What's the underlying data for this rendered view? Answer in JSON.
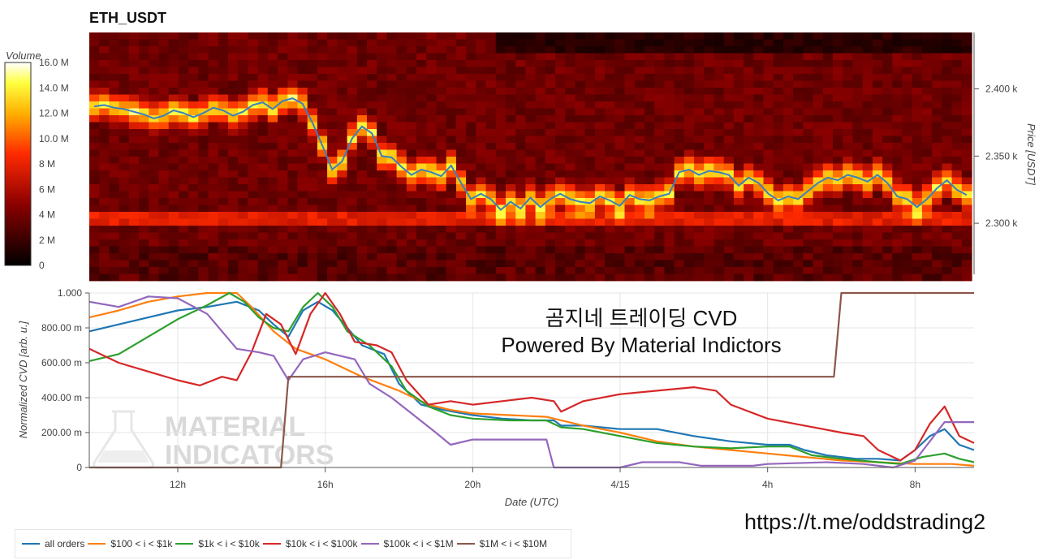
{
  "title": "ETH_USDT",
  "colors": {
    "all_orders": "#1f77b4",
    "r100_1k": "#ff7f0e",
    "r1k_10k": "#2ca02c",
    "r10k_100k": "#d62728",
    "r100k_1m": "#9467bd",
    "r1m_10m": "#8c564b"
  },
  "overlay": {
    "line1": "곰지네 트레이딩 CVD",
    "line2": "Powered By Material Indictors"
  },
  "url": "https://t.me/oddstrading2",
  "watermark": {
    "line1": "MATERIAL",
    "line2": "INDICATORS",
    "icon": "flask-icon"
  },
  "legend": [
    {
      "key": "all_orders",
      "label": "all orders"
    },
    {
      "key": "r100_1k",
      "label": "$100 < i < $1k"
    },
    {
      "key": "r1k_10k",
      "label": "$1k < i < $10k"
    },
    {
      "key": "r10k_100k",
      "label": "$10k < i < $100k"
    },
    {
      "key": "r100k_1m",
      "label": "$100k < i < $1M"
    },
    {
      "key": "r1m_10m",
      "label": "$1M < i < $10M"
    }
  ],
  "chart_data": [
    {
      "type": "heatmap",
      "title": "ETH_USDT",
      "ylabel": "Price [USDT]",
      "colorbar_label": "Volume",
      "colorbar_ticks": [
        "0",
        "2 M",
        "4 M",
        "6 M",
        "8 M",
        "10.0 M",
        "12.0 M",
        "14.0 M",
        "16.0 M"
      ],
      "colorbar_range": [
        0,
        16000000
      ],
      "y_ticks": [
        "2.300 k",
        "2.350 k",
        "2.400 k"
      ],
      "y_tick_values": [
        2300,
        2350,
        2400
      ],
      "ylim": [
        2262,
        2442
      ],
      "price_line": [
        2387,
        2388,
        2386,
        2385,
        2383,
        2381,
        2378,
        2380,
        2384,
        2382,
        2379,
        2382,
        2386,
        2384,
        2380,
        2383,
        2388,
        2390,
        2385,
        2391,
        2393,
        2389,
        2375,
        2358,
        2340,
        2346,
        2363,
        2372,
        2367,
        2350,
        2349,
        2342,
        2336,
        2340,
        2338,
        2335,
        2343,
        2330,
        2318,
        2322,
        2318,
        2310,
        2316,
        2311,
        2319,
        2312,
        2318,
        2322,
        2318,
        2316,
        2315,
        2320,
        2317,
        2313,
        2321,
        2318,
        2317,
        2320,
        2322,
        2338,
        2340,
        2336,
        2339,
        2338,
        2336,
        2328,
        2334,
        2330,
        2322,
        2317,
        2320,
        2318,
        2324,
        2330,
        2334,
        2332,
        2336,
        2334,
        2331,
        2336,
        2330,
        2320,
        2318,
        2312,
        2318,
        2326,
        2332,
        2325,
        2321
      ]
    },
    {
      "type": "line",
      "xlabel": "Date (UTC)",
      "ylabel": "Normalized CVD [arb. u.]",
      "x_ticks": [
        "12h",
        "16h",
        "20h",
        "4/15",
        "4h",
        "8h"
      ],
      "x_tick_hours": [
        12,
        16,
        20,
        24,
        28,
        32
      ],
      "xlim_hours": [
        9.6,
        33.6
      ],
      "y_ticks": [
        "0",
        "200.00 m",
        "400.00 m",
        "600.00 m",
        "800.00 m",
        "1.000"
      ],
      "ylim": [
        0,
        1
      ],
      "series": [
        {
          "key": "all_orders",
          "name": "all orders",
          "values": [
            [
              9.6,
              0.78
            ],
            [
              10.4,
              0.82
            ],
            [
              11.2,
              0.86
            ],
            [
              12.0,
              0.9
            ],
            [
              12.8,
              0.92
            ],
            [
              13.6,
              0.95
            ],
            [
              14.2,
              0.9
            ],
            [
              14.6,
              0.82
            ],
            [
              15.0,
              0.75
            ],
            [
              15.4,
              0.9
            ],
            [
              15.8,
              0.95
            ],
            [
              16.2,
              0.9
            ],
            [
              16.6,
              0.8
            ],
            [
              17.0,
              0.7
            ],
            [
              17.6,
              0.65
            ],
            [
              18.0,
              0.48
            ],
            [
              18.6,
              0.36
            ],
            [
              19.2,
              0.33
            ],
            [
              20.0,
              0.3
            ],
            [
              20.8,
              0.28
            ],
            [
              21.6,
              0.27
            ],
            [
              22.2,
              0.27
            ],
            [
              22.4,
              0.24
            ],
            [
              23.0,
              0.24
            ],
            [
              24.0,
              0.22
            ],
            [
              25.0,
              0.22
            ],
            [
              26.0,
              0.18
            ],
            [
              27.0,
              0.15
            ],
            [
              28.0,
              0.13
            ],
            [
              28.6,
              0.13
            ],
            [
              29.0,
              0.1
            ],
            [
              29.6,
              0.07
            ],
            [
              30.4,
              0.05
            ],
            [
              31.0,
              0.05
            ],
            [
              31.6,
              0.04
            ],
            [
              32.0,
              0.1
            ],
            [
              32.4,
              0.18
            ],
            [
              32.8,
              0.22
            ],
            [
              33.2,
              0.13
            ],
            [
              33.6,
              0.1
            ]
          ]
        },
        {
          "key": "r100_1k",
          "name": "$100 < i < $1k",
          "values": [
            [
              9.6,
              0.86
            ],
            [
              10.4,
              0.9
            ],
            [
              11.2,
              0.95
            ],
            [
              12.0,
              0.98
            ],
            [
              12.8,
              1.0
            ],
            [
              13.6,
              1.0
            ],
            [
              14.0,
              0.92
            ],
            [
              14.6,
              0.78
            ],
            [
              15.2,
              0.68
            ],
            [
              16.0,
              0.62
            ],
            [
              17.0,
              0.52
            ],
            [
              18.0,
              0.44
            ],
            [
              18.8,
              0.36
            ],
            [
              19.4,
              0.33
            ],
            [
              20.0,
              0.31
            ],
            [
              21.0,
              0.3
            ],
            [
              22.0,
              0.29
            ],
            [
              23.0,
              0.24
            ],
            [
              24.0,
              0.2
            ],
            [
              25.0,
              0.15
            ],
            [
              26.0,
              0.12
            ],
            [
              27.0,
              0.1
            ],
            [
              28.0,
              0.08
            ],
            [
              29.0,
              0.06
            ],
            [
              30.0,
              0.04
            ],
            [
              31.0,
              0.03
            ],
            [
              32.0,
              0.02
            ],
            [
              33.0,
              0.02
            ],
            [
              33.6,
              0.01
            ]
          ]
        },
        {
          "key": "r1k_10k",
          "name": "$1k < i < $10k",
          "values": [
            [
              9.6,
              0.61
            ],
            [
              10.4,
              0.65
            ],
            [
              11.2,
              0.75
            ],
            [
              12.0,
              0.85
            ],
            [
              12.8,
              0.93
            ],
            [
              13.4,
              1.0
            ],
            [
              13.8,
              0.95
            ],
            [
              14.2,
              0.86
            ],
            [
              14.6,
              0.8
            ],
            [
              15.0,
              0.78
            ],
            [
              15.4,
              0.92
            ],
            [
              15.8,
              1.0
            ],
            [
              16.2,
              0.92
            ],
            [
              16.6,
              0.78
            ],
            [
              17.2,
              0.7
            ],
            [
              17.8,
              0.58
            ],
            [
              18.2,
              0.44
            ],
            [
              18.8,
              0.35
            ],
            [
              19.4,
              0.3
            ],
            [
              20.0,
              0.28
            ],
            [
              21.0,
              0.27
            ],
            [
              22.0,
              0.27
            ],
            [
              22.4,
              0.23
            ],
            [
              23.0,
              0.22
            ],
            [
              24.0,
              0.18
            ],
            [
              25.0,
              0.14
            ],
            [
              26.0,
              0.12
            ],
            [
              27.0,
              0.11
            ],
            [
              28.0,
              0.12
            ],
            [
              28.6,
              0.12
            ],
            [
              29.2,
              0.07
            ],
            [
              30.0,
              0.05
            ],
            [
              31.0,
              0.03
            ],
            [
              31.6,
              0.02
            ],
            [
              32.2,
              0.06
            ],
            [
              32.8,
              0.08
            ],
            [
              33.2,
              0.05
            ],
            [
              33.6,
              0.03
            ]
          ]
        },
        {
          "key": "r10k_100k",
          "name": "$10k < i < $100k",
          "values": [
            [
              9.6,
              0.68
            ],
            [
              10.4,
              0.6
            ],
            [
              11.2,
              0.55
            ],
            [
              12.0,
              0.5
            ],
            [
              12.6,
              0.47
            ],
            [
              13.2,
              0.52
            ],
            [
              13.6,
              0.5
            ],
            [
              14.0,
              0.66
            ],
            [
              14.4,
              0.88
            ],
            [
              14.8,
              0.82
            ],
            [
              15.2,
              0.65
            ],
            [
              15.6,
              0.88
            ],
            [
              16.0,
              1.0
            ],
            [
              16.4,
              0.88
            ],
            [
              16.8,
              0.72
            ],
            [
              17.4,
              0.7
            ],
            [
              17.8,
              0.66
            ],
            [
              18.2,
              0.5
            ],
            [
              18.8,
              0.36
            ],
            [
              19.4,
              0.38
            ],
            [
              20.0,
              0.36
            ],
            [
              20.8,
              0.38
            ],
            [
              21.6,
              0.4
            ],
            [
              22.2,
              0.38
            ],
            [
              22.4,
              0.32
            ],
            [
              23.0,
              0.38
            ],
            [
              24.0,
              0.42
            ],
            [
              25.0,
              0.44
            ],
            [
              26.0,
              0.46
            ],
            [
              26.6,
              0.44
            ],
            [
              27.0,
              0.36
            ],
            [
              28.0,
              0.28
            ],
            [
              29.0,
              0.24
            ],
            [
              30.0,
              0.2
            ],
            [
              30.6,
              0.18
            ],
            [
              31.0,
              0.1
            ],
            [
              31.6,
              0.04
            ],
            [
              32.0,
              0.1
            ],
            [
              32.4,
              0.25
            ],
            [
              32.8,
              0.35
            ],
            [
              33.2,
              0.18
            ],
            [
              33.6,
              0.14
            ]
          ]
        },
        {
          "key": "r100k_1m",
          "name": "$100k < i < $1M",
          "values": [
            [
              9.6,
              0.95
            ],
            [
              10.4,
              0.92
            ],
            [
              11.2,
              0.98
            ],
            [
              12.0,
              0.97
            ],
            [
              12.8,
              0.88
            ],
            [
              13.6,
              0.68
            ],
            [
              14.2,
              0.66
            ],
            [
              14.6,
              0.64
            ],
            [
              15.0,
              0.5
            ],
            [
              15.4,
              0.62
            ],
            [
              16.0,
              0.66
            ],
            [
              16.8,
              0.62
            ],
            [
              17.2,
              0.48
            ],
            [
              17.8,
              0.4
            ],
            [
              18.4,
              0.3
            ],
            [
              19.0,
              0.2
            ],
            [
              19.4,
              0.13
            ],
            [
              20.0,
              0.16
            ],
            [
              20.8,
              0.16
            ],
            [
              21.6,
              0.16
            ],
            [
              22.0,
              0.16
            ],
            [
              22.2,
              0.0
            ],
            [
              24.0,
              0.0
            ],
            [
              24.6,
              0.03
            ],
            [
              25.6,
              0.03
            ],
            [
              26.2,
              0.01
            ],
            [
              27.6,
              0.01
            ],
            [
              28.0,
              0.02
            ],
            [
              29.6,
              0.03
            ],
            [
              30.6,
              0.02
            ],
            [
              31.4,
              0.0
            ],
            [
              32.0,
              0.04
            ],
            [
              32.4,
              0.15
            ],
            [
              32.8,
              0.26
            ],
            [
              33.6,
              0.26
            ]
          ]
        },
        {
          "key": "r1m_10m",
          "name": "$1M < i < $10M",
          "values": [
            [
              9.6,
              0.0
            ],
            [
              14.8,
              0.0
            ],
            [
              15.0,
              0.52
            ],
            [
              29.8,
              0.52
            ],
            [
              30.0,
              1.0
            ],
            [
              33.6,
              1.0
            ]
          ]
        }
      ]
    }
  ]
}
